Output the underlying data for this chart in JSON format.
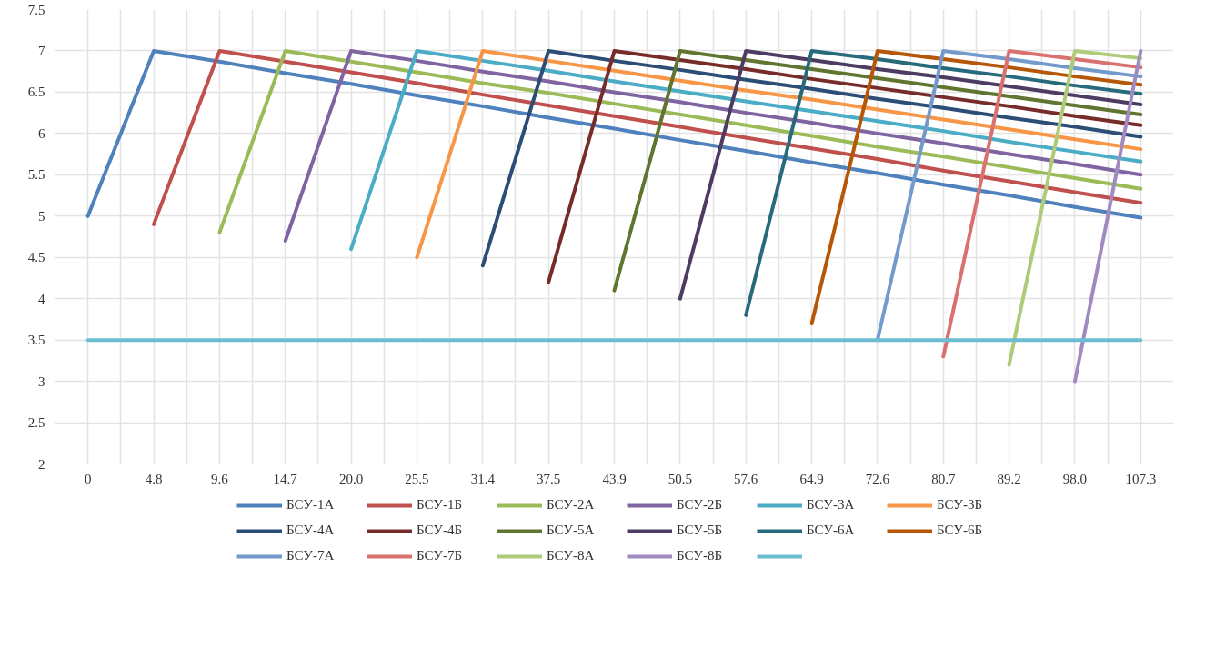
{
  "chart_data": {
    "type": "line",
    "categories": [
      "0",
      "4.8",
      "9.6",
      "14.7",
      "20.0",
      "25.5",
      "31.4",
      "37.5",
      "43.9",
      "50.5",
      "57.6",
      "64.9",
      "72.6",
      "80.7",
      "89.2",
      "98.0",
      "107.3"
    ],
    "ylim": [
      2,
      7.5
    ],
    "yticks": [
      2,
      2.5,
      3,
      3.5,
      4,
      4.5,
      5,
      5.5,
      6,
      6.5,
      7,
      7.5
    ],
    "grid": true,
    "legend": "bottom",
    "marker": "none",
    "line_style": "solid",
    "series": [
      {
        "name": "БСУ-1А",
        "color": "#4f81bd",
        "values": [
          5,
          7,
          6.87,
          6.73,
          6.6,
          6.46,
          6.33,
          6.19,
          6.06,
          5.92,
          5.79,
          5.65,
          5.52,
          5.38,
          5.25,
          5.11,
          4.98
        ]
      },
      {
        "name": "БСУ-1Б",
        "color": "#c0504d",
        "values": [
          null,
          4.9,
          7,
          6.87,
          6.74,
          6.61,
          6.47,
          6.34,
          6.21,
          6.08,
          5.95,
          5.82,
          5.69,
          5.55,
          5.42,
          5.29,
          5.16
        ]
      },
      {
        "name": "БСУ-2А",
        "color": "#9bbb59",
        "values": [
          null,
          null,
          4.8,
          7,
          6.87,
          6.74,
          6.61,
          6.49,
          6.36,
          6.23,
          6.1,
          5.97,
          5.84,
          5.72,
          5.59,
          5.46,
          5.33
        ]
      },
      {
        "name": "БСУ-2Б",
        "color": "#8064a2",
        "values": [
          null,
          null,
          null,
          4.7,
          7,
          6.88,
          6.75,
          6.63,
          6.5,
          6.38,
          6.25,
          6.13,
          6.0,
          5.88,
          5.75,
          5.63,
          5.5
        ]
      },
      {
        "name": "БСУ-3А",
        "color": "#4bacc6",
        "values": [
          null,
          null,
          null,
          null,
          4.6,
          7,
          6.88,
          6.76,
          6.63,
          6.51,
          6.39,
          6.27,
          6.15,
          6.03,
          5.9,
          5.78,
          5.66
        ]
      },
      {
        "name": "БСУ-3Б",
        "color": "#f79646",
        "values": [
          null,
          null,
          null,
          null,
          null,
          4.5,
          7,
          6.88,
          6.76,
          6.64,
          6.52,
          6.41,
          6.29,
          6.17,
          6.05,
          5.93,
          5.81
        ]
      },
      {
        "name": "БСУ-4А",
        "color": "#2c4d75",
        "values": [
          null,
          null,
          null,
          null,
          null,
          null,
          4.4,
          7,
          6.88,
          6.77,
          6.65,
          6.54,
          6.42,
          6.31,
          6.19,
          6.08,
          5.96
        ]
      },
      {
        "name": "БСУ-4Б",
        "color": "#772c2a",
        "values": [
          null,
          null,
          null,
          null,
          null,
          null,
          null,
          4.2,
          7,
          6.89,
          6.78,
          6.66,
          6.55,
          6.44,
          6.33,
          6.21,
          6.1
        ]
      },
      {
        "name": "БСУ-5А",
        "color": "#5f7530",
        "values": [
          null,
          null,
          null,
          null,
          null,
          null,
          null,
          null,
          4.1,
          7,
          6.89,
          6.78,
          6.67,
          6.56,
          6.45,
          6.34,
          6.23
        ]
      },
      {
        "name": "БСУ-5Б",
        "color": "#4d3b62",
        "values": [
          null,
          null,
          null,
          null,
          null,
          null,
          null,
          null,
          null,
          4.0,
          7,
          6.89,
          6.78,
          6.68,
          6.57,
          6.46,
          6.35
        ]
      },
      {
        "name": "БСУ-6А",
        "color": "#276a7c",
        "values": [
          null,
          null,
          null,
          null,
          null,
          null,
          null,
          null,
          null,
          null,
          3.8,
          7,
          6.9,
          6.79,
          6.69,
          6.58,
          6.48
        ]
      },
      {
        "name": "БСУ-6Б",
        "color": "#b65708",
        "values": [
          null,
          null,
          null,
          null,
          null,
          null,
          null,
          null,
          null,
          null,
          null,
          3.7,
          7,
          6.9,
          6.8,
          6.69,
          6.59
        ]
      },
      {
        "name": "БСУ-7А",
        "color": "#729aca",
        "values": [
          null,
          null,
          null,
          null,
          null,
          null,
          null,
          null,
          null,
          null,
          null,
          null,
          3.5,
          7,
          6.9,
          6.79,
          6.69
        ]
      },
      {
        "name": "БСУ-7Б",
        "color": "#d9716e",
        "values": [
          null,
          null,
          null,
          null,
          null,
          null,
          null,
          null,
          null,
          null,
          null,
          null,
          null,
          3.3,
          7,
          6.9,
          6.8
        ]
      },
      {
        "name": "БСУ-8А",
        "color": "#afcb7a",
        "values": [
          null,
          null,
          null,
          null,
          null,
          null,
          null,
          null,
          null,
          null,
          null,
          null,
          null,
          null,
          3.2,
          7,
          6.91
        ]
      },
      {
        "name": "БСУ-8Б",
        "color": "#a08bc1",
        "values": [
          null,
          null,
          null,
          null,
          null,
          null,
          null,
          null,
          null,
          null,
          null,
          null,
          null,
          null,
          null,
          3.0,
          7
        ]
      },
      {
        "color": "#6bbdd3",
        "values": [
          3.5,
          3.5,
          3.5,
          3.5,
          3.5,
          3.5,
          3.5,
          3.5,
          3.5,
          3.5,
          3.5,
          3.5,
          3.5,
          3.5,
          3.5,
          3.5,
          3.5
        ]
      }
    ]
  }
}
